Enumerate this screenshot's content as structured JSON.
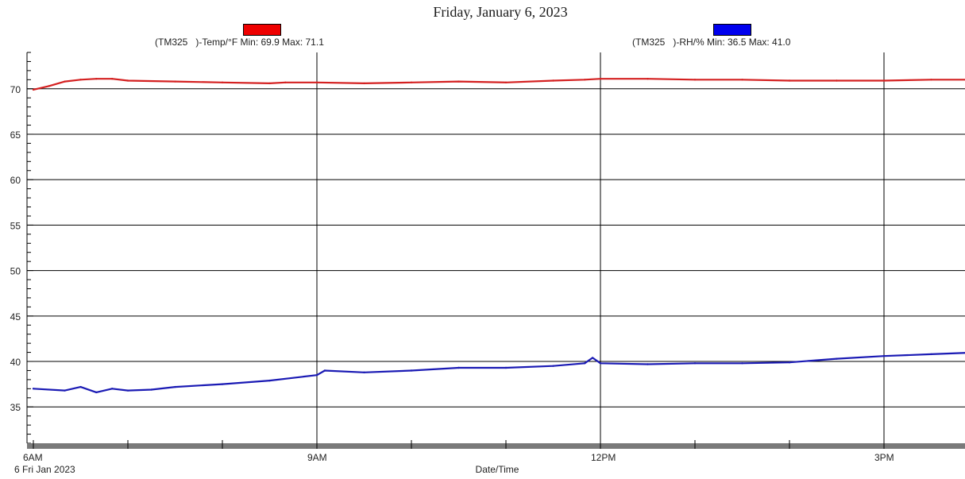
{
  "title": "Friday, January 6, 2023",
  "chart_data": {
    "type": "line",
    "title": "Friday, January 6, 2023",
    "xlabel": "Date/Time",
    "ylabel": "",
    "x_ticks": [
      "6AM",
      "9AM",
      "12PM",
      "3PM"
    ],
    "x_date_label": "6 Fri Jan 2023",
    "x_range": [
      "06:00",
      "16:30"
    ],
    "ylim": [
      31,
      74
    ],
    "y_ticks": [
      35,
      40,
      45,
      50,
      55,
      60,
      65,
      70
    ],
    "grid": true,
    "legend_position": "top",
    "series": [
      {
        "name": "(TM325   )-Temp/°F Min: 69.9 Max: 71.1",
        "color": "#d42020",
        "swatch": "#ee0000",
        "x": [
          "06:00",
          "06:10",
          "06:20",
          "06:30",
          "06:40",
          "06:50",
          "07:00",
          "07:30",
          "08:00",
          "08:30",
          "08:40",
          "09:00",
          "09:30",
          "10:00",
          "10:30",
          "11:00",
          "11:30",
          "11:50",
          "12:00",
          "12:30",
          "13:00",
          "13:30",
          "14:00",
          "14:30",
          "15:00",
          "15:30",
          "16:00",
          "16:30"
        ],
        "values": [
          69.9,
          70.3,
          70.8,
          71.0,
          71.1,
          71.1,
          70.9,
          70.8,
          70.7,
          70.6,
          70.7,
          70.7,
          70.6,
          70.7,
          70.8,
          70.7,
          70.9,
          71.0,
          71.1,
          71.1,
          71.0,
          71.0,
          70.9,
          70.9,
          70.9,
          71.0,
          71.0,
          70.9
        ]
      },
      {
        "name": "(TM325   )-RH/% Min: 36.5 Max: 41.0",
        "color": "#1a1ab4",
        "swatch": "#0000ee",
        "x": [
          "06:00",
          "06:20",
          "06:30",
          "06:40",
          "06:50",
          "07:00",
          "07:15",
          "07:30",
          "08:00",
          "08:30",
          "09:00",
          "09:05",
          "09:30",
          "10:00",
          "10:30",
          "11:00",
          "11:30",
          "11:50",
          "11:55",
          "12:00",
          "12:30",
          "13:00",
          "13:30",
          "14:00",
          "14:30",
          "15:00",
          "15:30",
          "16:00",
          "16:30"
        ],
        "values": [
          37.0,
          36.8,
          37.2,
          36.6,
          37.0,
          36.8,
          36.9,
          37.2,
          37.5,
          37.9,
          38.5,
          39.0,
          38.8,
          39.0,
          39.3,
          39.3,
          39.5,
          39.8,
          40.4,
          39.8,
          39.7,
          39.8,
          39.8,
          39.9,
          40.3,
          40.6,
          40.8,
          41.0,
          41.0
        ]
      }
    ]
  }
}
